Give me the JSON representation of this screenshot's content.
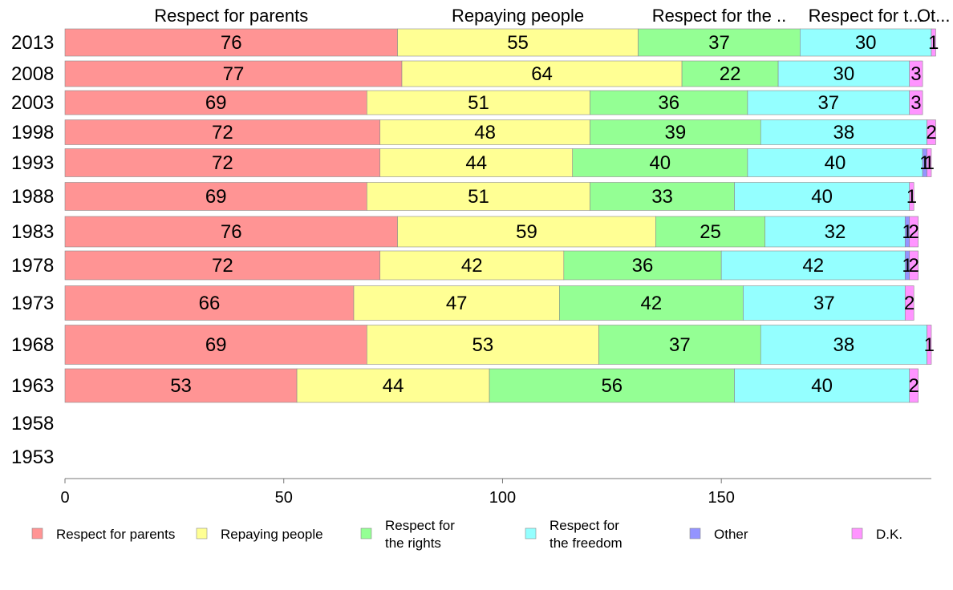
{
  "chart_data": {
    "type": "bar",
    "orientation": "horizontal",
    "stacked": true,
    "categories": [
      "2013",
      "2008",
      "2003",
      "1998",
      "1993",
      "1988",
      "1983",
      "1978",
      "1973",
      "1968",
      "1963",
      "1958",
      "1953"
    ],
    "column_headers": [
      "Respect for parents",
      "Repaying people",
      "Respect for the ..",
      "Respect for t...",
      "Ot..."
    ],
    "series": [
      {
        "name": "Respect for parents",
        "legend": [
          "Respect for parents"
        ],
        "color": "#ff9494",
        "values": [
          76,
          77,
          69,
          72,
          72,
          69,
          76,
          72,
          66,
          69,
          53,
          null,
          null
        ]
      },
      {
        "name": "Repaying people",
        "legend": [
          "Repaying people"
        ],
        "color": "#ffff94",
        "values": [
          55,
          64,
          51,
          48,
          44,
          51,
          59,
          42,
          47,
          53,
          44,
          null,
          null
        ]
      },
      {
        "name": "Respect for the rights",
        "legend": [
          "Respect for",
          "the rights"
        ],
        "color": "#94ff94",
        "values": [
          37,
          22,
          36,
          39,
          40,
          33,
          25,
          36,
          42,
          37,
          56,
          null,
          null
        ]
      },
      {
        "name": "Respect for the freedom",
        "legend": [
          "Respect for",
          "the freedom"
        ],
        "color": "#94ffff",
        "values": [
          30,
          30,
          37,
          38,
          40,
          40,
          32,
          42,
          37,
          38,
          40,
          null,
          null
        ]
      },
      {
        "name": "Other",
        "legend": [
          "Other"
        ],
        "color": "#9494ff",
        "values": [
          0,
          0,
          0,
          0,
          1,
          0,
          1,
          1,
          0,
          0,
          0,
          null,
          null
        ]
      },
      {
        "name": "D.K.",
        "legend": [
          "D.K."
        ],
        "color": "#ff94ff",
        "values": [
          1,
          3,
          3,
          2,
          1,
          1,
          2,
          2,
          2,
          1,
          2,
          null,
          null
        ]
      }
    ],
    "xlim": [
      0,
      198
    ],
    "xticks": [
      0,
      50,
      100,
      150
    ],
    "grid": false,
    "legend_position": "bottom"
  }
}
